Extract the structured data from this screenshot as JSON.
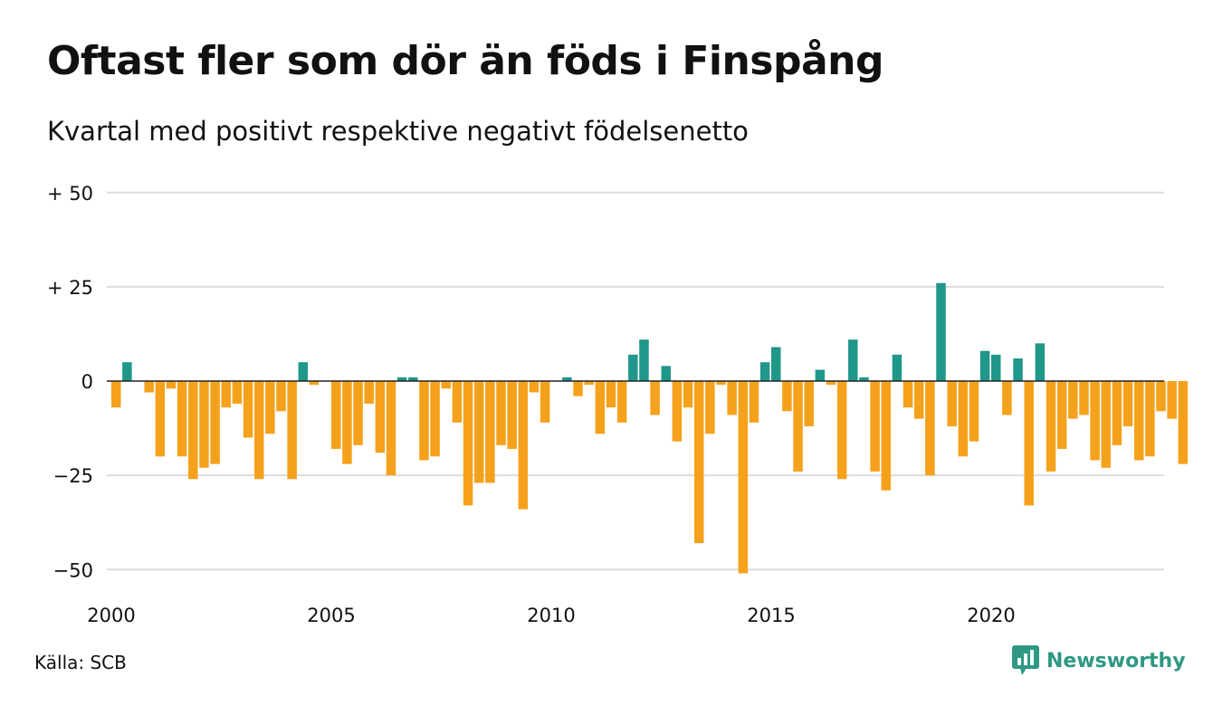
{
  "header": {
    "title": "Oftast fler som dör än föds i Finspång",
    "subtitle": "Kvartal med positivt respektive negativt födelsenetto"
  },
  "footer": {
    "source": "Källa: SCB",
    "brand": "Newsworthy",
    "brand_icon": "newsworthy-logo-icon"
  },
  "colors": {
    "positive": "#1f978a",
    "negative": "#f6a11c",
    "grid": "#dcdcdc",
    "zero_line": "#222222",
    "brand": "#2e9883"
  },
  "chart_data": {
    "type": "bar",
    "title": "Oftast fler som dör än föds i Finspång",
    "subtitle": "Kvartal med positivt respektive negativt födelsenetto",
    "xlabel": "",
    "ylabel": "",
    "ylim": [
      -55,
      50
    ],
    "y_ticks": [
      {
        "value": 50,
        "label": "+ 50"
      },
      {
        "value": 25,
        "label": "+ 25"
      },
      {
        "value": 0,
        "label": "0"
      },
      {
        "value": -25,
        "label": "−25"
      },
      {
        "value": -50,
        "label": "−50"
      }
    ],
    "x_ticks": [
      {
        "value": 2000,
        "label": "2000"
      },
      {
        "value": 2005,
        "label": "2005"
      },
      {
        "value": 2010,
        "label": "2010"
      },
      {
        "value": 2015,
        "label": "2015"
      },
      {
        "value": 2020,
        "label": "2020"
      }
    ],
    "grid": true,
    "legend": "none",
    "start_year": 2000,
    "quarters_per_year": 4,
    "values": [
      -7,
      5,
      0,
      -3,
      -20,
      -2,
      -20,
      -26,
      -23,
      -22,
      -7,
      -6,
      -15,
      -26,
      -14,
      -8,
      -26,
      5,
      -1,
      0,
      -18,
      -22,
      -17,
      -6,
      -19,
      -25,
      1,
      1,
      -21,
      -20,
      -2,
      -11,
      -33,
      -27,
      -27,
      -17,
      -18,
      -34,
      -3,
      -11,
      0,
      1,
      -4,
      -1,
      -14,
      -7,
      -11,
      7,
      11,
      -9,
      4,
      -16,
      -7,
      -43,
      -14,
      -1,
      -9,
      -51,
      -11,
      5,
      9,
      -8,
      -24,
      -12,
      3,
      -1,
      -26,
      11,
      1,
      -24,
      -29,
      7,
      -7,
      -10,
      -25,
      26,
      -12,
      -20,
      -16,
      8,
      7,
      -9,
      6,
      -33,
      10,
      -24,
      -18,
      -10,
      -9,
      -21,
      -23,
      -17,
      -12,
      -21,
      -20,
      -8,
      -10,
      -22
    ]
  }
}
